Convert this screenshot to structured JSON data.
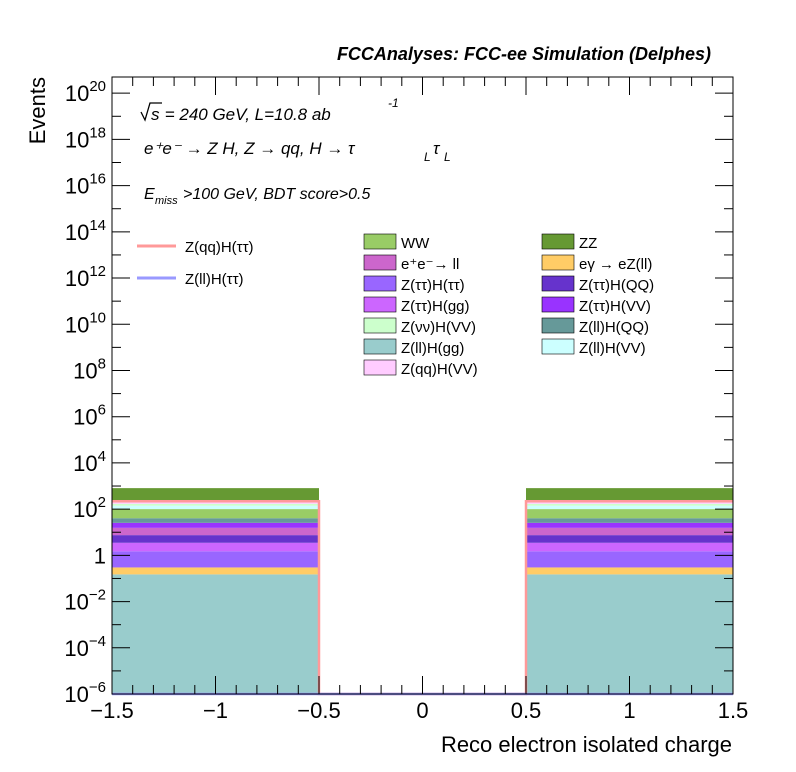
{
  "chart_data": {
    "type": "bar",
    "title": "FCCAnalyses: FCC-ee Simulation (Delphes)",
    "xlabel": "Reco electron isolated charge",
    "ylabel": "Events",
    "xlim": [
      -1.5,
      1.5
    ],
    "ylim_log10": [
      -6,
      20.7
    ],
    "log_y": true,
    "x_ticks": [
      "−1.5",
      "−1",
      "−0.5",
      "0",
      "0.5",
      "1",
      "1.5"
    ],
    "annotations": {
      "sqrt_s": "s",
      "energy_lumi": " = 240 GeV, L=10.8 ab",
      "lumi_exp": "-1",
      "process": "e⁺e⁻ → Z H, Z → qq, H → τ",
      "sub_L": "L",
      "tau": "τ",
      "cut_E": "E",
      "cut_sub": "miss",
      "cut_rest": ">100 GeV, BDT score>0.5"
    },
    "bins": [
      [
        -1.5,
        -0.5
      ],
      [
        -0.5,
        0.5
      ],
      [
        0.5,
        1.5
      ]
    ],
    "stack": [
      {
        "name": "Z(ll)H(gg)",
        "color": "#99CCCC",
        "values": [
          0.15,
          0,
          0.15
        ]
      },
      {
        "name": "eγ → eZ(ll)",
        "color": "#FFCC66",
        "values": [
          0.15,
          0,
          0.15
        ]
      },
      {
        "name": "Z(ττ)H(ττ)",
        "color": "#9966FF",
        "values": [
          1.2,
          0,
          1.2
        ]
      },
      {
        "name": "Z(ττ)H(gg)",
        "color": "#CC66FF",
        "values": [
          2.0,
          0,
          2.0
        ]
      },
      {
        "name": "Z(ττ)H(QQ)",
        "color": "#6633CC",
        "values": [
          4.0,
          0,
          4.0
        ]
      },
      {
        "name": "e⁺e⁻→ ll",
        "color": "#CC66CC",
        "values": [
          8.0,
          0,
          8.0
        ]
      },
      {
        "name": "Z(ττ)H(VV)",
        "color": "#9933FF",
        "values": [
          10.0,
          0,
          10.0
        ]
      },
      {
        "name": "Z(ll)H(QQ)",
        "color": "#669999",
        "values": [
          15.0,
          0,
          15.0
        ]
      },
      {
        "name": "WW",
        "color": "#99CC66",
        "values": [
          60.0,
          0,
          60.0
        ]
      },
      {
        "name": "Z(ll)H(VV)",
        "color": "#CCFFFF",
        "values": [
          40.0,
          0,
          40.0
        ]
      },
      {
        "name": "Z(νν)H(VV)",
        "color": "#CCFFCC",
        "values": [
          30.0,
          0,
          30.0
        ]
      },
      {
        "name": "Z(qq)H(VV)",
        "color": "#FFCCFF",
        "values": [
          60.0,
          0,
          60.0
        ]
      },
      {
        "name": "ZZ",
        "color": "#669933",
        "values": [
          580.0,
          0,
          580.0
        ]
      }
    ],
    "signals": [
      {
        "name": "Z(qq)H(ττ)",
        "color": "#FF9999",
        "values": [
          220,
          0,
          220
        ]
      },
      {
        "name": "Z(ll)H(ττ)",
        "color": "#9999FF",
        "values": [
          1e-06,
          0,
          1e-06
        ]
      }
    ],
    "legend_signals": [
      "Z(qq)H(ττ)",
      "Z(ll)H(ττ)"
    ],
    "legend_col1": [
      "WW",
      "e⁺e⁻→ ll",
      "Z(ττ)H(ττ)",
      "Z(ττ)H(gg)",
      "Z(νν)H(VV)",
      "Z(ll)H(gg)",
      "Z(qq)H(VV)"
    ],
    "legend_col2": [
      "ZZ",
      "eγ → eZ(ll)",
      "Z(ττ)H(QQ)",
      "Z(ττ)H(VV)",
      "Z(ll)H(QQ)",
      "Z(ll)H(VV)"
    ],
    "legend_placement": "top"
  }
}
